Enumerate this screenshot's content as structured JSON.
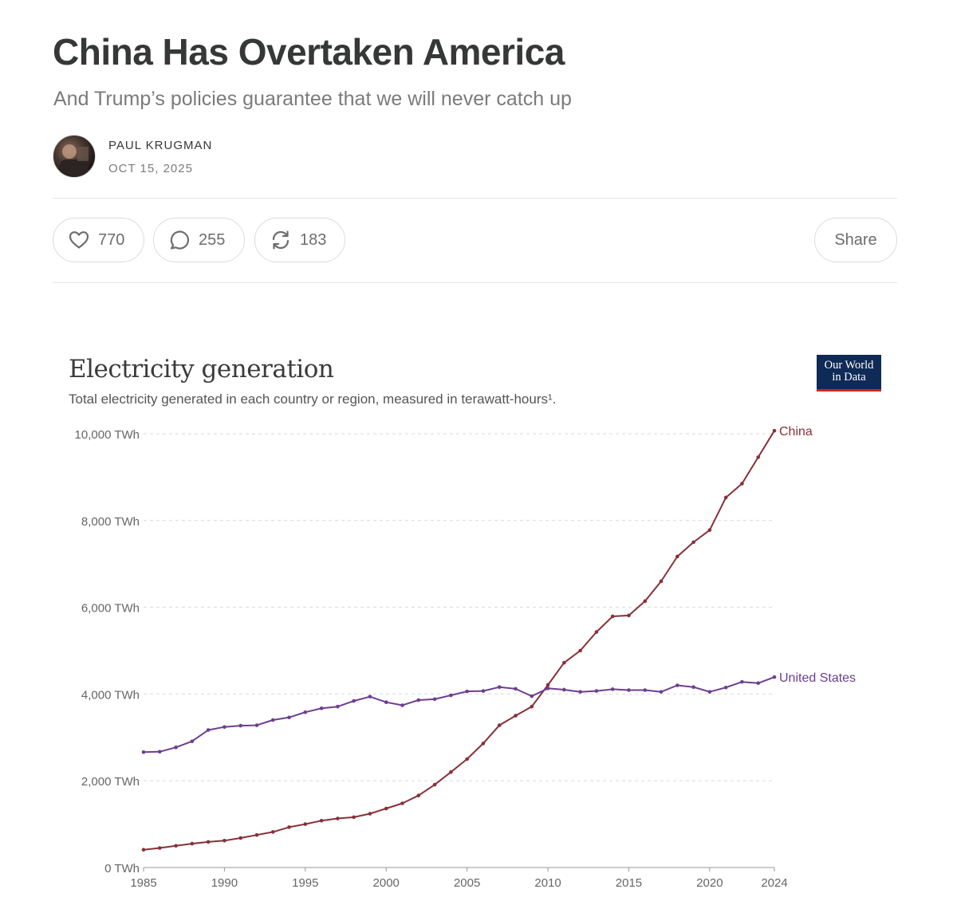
{
  "article": {
    "title": "China Has Overtaken America",
    "subtitle": "And Trump’s policies guarantee that we will never catch up",
    "author": "PAUL KRUGMAN",
    "date": "OCT 15, 2025"
  },
  "actions": {
    "likes": "770",
    "comments": "255",
    "restacks": "183",
    "share_label": "Share"
  },
  "icons": {
    "like": "heart-icon",
    "comment": "speech-bubble-icon",
    "restack": "restack-arrows-icon"
  },
  "logo": {
    "line1": "Our World",
    "line2": "in Data",
    "bg_color": "#0f2a57",
    "accent_color": "#ce261e"
  },
  "chart_data": {
    "type": "line",
    "title": "Electricity generation",
    "subtitle": "Total electricity generated in each country or region, measured in terawatt-hours¹.",
    "xlabel": "",
    "ylabel": "",
    "xlim": [
      1985,
      2024
    ],
    "ylim": [
      0,
      10000
    ],
    "grid": true,
    "y_ticks": [
      0,
      2000,
      4000,
      6000,
      8000,
      10000
    ],
    "y_tick_labels": [
      "0 TWh",
      "2,000 TWh",
      "4,000 TWh",
      "6,000 TWh",
      "8,000 TWh",
      "10,000 TWh"
    ],
    "x_ticks": [
      1985,
      1990,
      1995,
      2000,
      2005,
      2010,
      2015,
      2020,
      2024
    ],
    "x_tick_labels": [
      "1985",
      "1990",
      "1995",
      "2000",
      "2005",
      "2010",
      "2015",
      "2020",
      "2024"
    ],
    "x": [
      1985,
      1986,
      1987,
      1988,
      1989,
      1990,
      1991,
      1992,
      1993,
      1994,
      1995,
      1996,
      1997,
      1998,
      1999,
      2000,
      2001,
      2002,
      2003,
      2004,
      2005,
      2006,
      2007,
      2008,
      2009,
      2010,
      2011,
      2012,
      2013,
      2014,
      2015,
      2016,
      2017,
      2018,
      2019,
      2020,
      2021,
      2022,
      2023,
      2024
    ],
    "series": [
      {
        "name": "China",
        "color": "#883039",
        "values": [
          410,
          450,
          500,
          550,
          590,
          620,
          680,
          750,
          820,
          930,
          1000,
          1080,
          1130,
          1160,
          1240,
          1360,
          1480,
          1660,
          1910,
          2200,
          2500,
          2860,
          3280,
          3500,
          3710,
          4210,
          4720,
          5000,
          5430,
          5790,
          5810,
          6140,
          6600,
          7170,
          7500,
          7780,
          8530,
          8850,
          9460,
          10070
        ]
      },
      {
        "name": "United States",
        "color": "#6d3e91",
        "values": [
          2660,
          2670,
          2770,
          2910,
          3170,
          3240,
          3270,
          3280,
          3400,
          3460,
          3580,
          3670,
          3710,
          3840,
          3940,
          3810,
          3740,
          3860,
          3880,
          3970,
          4060,
          4070,
          4160,
          4120,
          3950,
          4130,
          4100,
          4050,
          4070,
          4110,
          4090,
          4090,
          4050,
          4200,
          4160,
          4050,
          4150,
          4280,
          4250,
          4390
        ]
      }
    ],
    "legend": "end-labels"
  }
}
